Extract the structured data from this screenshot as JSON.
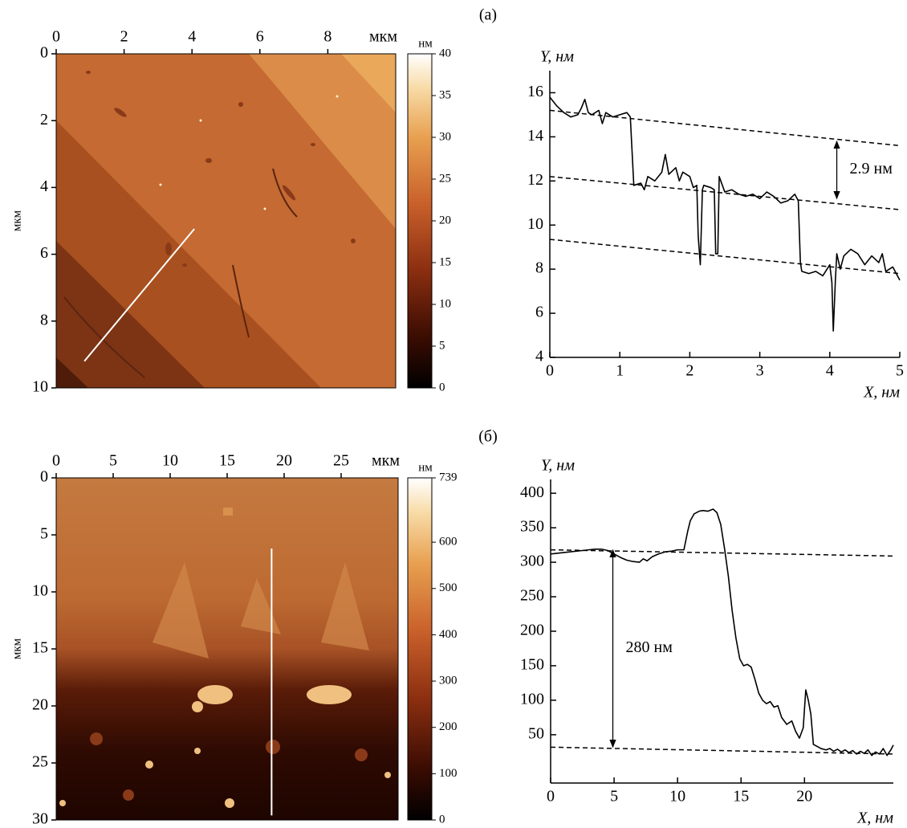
{
  "panel_labels": [
    "(а)",
    "(б)"
  ],
  "chart_data": [
    {
      "type": "image",
      "x_unit": "мкм",
      "ylabel": "мкм",
      "xlim": [
        0,
        10
      ],
      "xticks": [
        0,
        2,
        4,
        6,
        8
      ],
      "ylim": [
        0,
        10
      ],
      "yticks": [
        0,
        2,
        4,
        6,
        8,
        10
      ],
      "y_inverted": true,
      "colorbar": {
        "label": "нм",
        "lim": [
          0,
          40
        ],
        "ticks": [
          0,
          5,
          10,
          15,
          20,
          25,
          30,
          35,
          40
        ]
      },
      "scan_line": {
        "x": [
          0.83,
          4.07
        ],
        "y": [
          9.2,
          5.24
        ],
        "color": "#ffffff"
      }
    },
    {
      "type": "line",
      "xlabel": "X, нм",
      "ylabel": "Y, нм",
      "xlim": [
        0,
        5
      ],
      "xticks": [
        0,
        1,
        2,
        3,
        4,
        5
      ],
      "ylim": [
        4,
        17
      ],
      "yticks": [
        4,
        6,
        8,
        10,
        12,
        14,
        16
      ],
      "x": [
        0,
        0.05,
        0.1,
        0.2,
        0.3,
        0.4,
        0.45,
        0.5,
        0.55,
        0.6,
        0.7,
        0.75,
        0.8,
        0.9,
        1.0,
        1.1,
        1.15,
        1.2,
        1.3,
        1.35,
        1.4,
        1.5,
        1.6,
        1.65,
        1.7,
        1.8,
        1.85,
        1.9,
        2.0,
        2.05,
        2.1,
        2.12,
        2.15,
        2.18,
        2.2,
        2.3,
        2.35,
        2.37,
        2.4,
        2.42,
        2.5,
        2.6,
        2.7,
        2.8,
        2.9,
        3.0,
        3.1,
        3.2,
        3.3,
        3.4,
        3.5,
        3.55,
        3.58,
        3.6,
        3.7,
        3.8,
        3.9,
        4.0,
        4.03,
        4.05,
        4.08,
        4.1,
        4.15,
        4.2,
        4.3,
        4.4,
        4.5,
        4.6,
        4.7,
        4.75,
        4.8,
        4.9,
        4.95,
        5.0
      ],
      "series": [
        {
          "color": "#000000",
          "values": [
            15.8,
            15.6,
            15.4,
            15.1,
            14.9,
            15.0,
            15.3,
            15.7,
            15.1,
            15.0,
            15.2,
            14.6,
            15.1,
            14.9,
            15.0,
            15.1,
            14.9,
            11.8,
            11.9,
            11.6,
            12.2,
            12.0,
            12.4,
            13.2,
            12.3,
            12.6,
            12.0,
            12.4,
            12.2,
            11.7,
            11.8,
            9.5,
            8.2,
            11.6,
            11.8,
            11.7,
            11.6,
            8.7,
            8.7,
            12.2,
            11.5,
            11.6,
            11.4,
            11.3,
            11.4,
            11.2,
            11.5,
            11.3,
            11.0,
            11.1,
            11.4,
            11.1,
            8.3,
            7.9,
            7.8,
            7.9,
            7.7,
            8.2,
            7.4,
            5.2,
            7.5,
            8.7,
            8.0,
            8.6,
            8.9,
            8.7,
            8.2,
            8.6,
            8.3,
            8.7,
            7.9,
            8.1,
            7.8,
            7.5
          ]
        }
      ],
      "reference_lines": [
        {
          "x": [
            0,
            5
          ],
          "y": [
            15.2,
            13.6
          ]
        },
        {
          "x": [
            0,
            5
          ],
          "y": [
            12.2,
            10.7
          ]
        },
        {
          "x": [
            0,
            5
          ],
          "y": [
            9.35,
            7.8
          ]
        }
      ],
      "annotation": {
        "text": "2.9 нм",
        "x": 4.1,
        "y": [
          13.8,
          11.2
        ]
      }
    },
    {
      "type": "image",
      "x_unit": "мкм",
      "ylabel": "мкм",
      "xlim": [
        0,
        30
      ],
      "xticks": [
        0,
        5,
        10,
        15,
        20,
        25
      ],
      "ylim": [
        0,
        30
      ],
      "yticks": [
        0,
        5,
        10,
        15,
        20,
        25,
        30
      ],
      "y_inverted": true,
      "colorbar": {
        "label": "нм",
        "lim": [
          0,
          739
        ],
        "ticks": [
          0,
          100,
          200,
          300,
          400,
          500,
          600,
          739
        ]
      },
      "scan_line": {
        "x": [
          18.9,
          18.9
        ],
        "y": [
          6.2,
          29.6
        ],
        "color": "#ffffff"
      }
    },
    {
      "type": "line",
      "xlabel": "X, нм",
      "ylabel": "Y, нм",
      "xlim": [
        0,
        27
      ],
      "xticks": [
        0,
        5,
        10,
        15,
        20
      ],
      "ylim": [
        -20,
        420
      ],
      "yticks": [
        50,
        100,
        150,
        200,
        250,
        300,
        350,
        400
      ],
      "x": [
        0,
        0.5,
        1,
        1.5,
        2,
        2.5,
        3,
        3.5,
        4,
        4.5,
        5,
        5.5,
        6,
        6.5,
        7,
        7.3,
        7.6,
        8,
        8.5,
        9,
        9.5,
        10,
        10.5,
        10.8,
        11,
        11.3,
        11.7,
        12,
        12.4,
        12.8,
        13.1,
        13.4,
        13.7,
        14,
        14.3,
        14.6,
        14.9,
        15.2,
        15.5,
        15.8,
        16.1,
        16.4,
        16.7,
        17,
        17.3,
        17.6,
        17.9,
        18.2,
        18.6,
        19,
        19.3,
        19.6,
        19.9,
        20.1,
        20.3,
        20.5,
        20.7,
        21,
        21.3,
        21.7,
        22,
        22.3,
        22.6,
        22.9,
        23.2,
        23.5,
        23.8,
        24.1,
        24.4,
        24.7,
        25,
        25.3,
        25.6,
        25.9,
        26.2,
        26.5,
        26.8,
        27
      ],
      "series": [
        {
          "color": "#000000",
          "values": [
            312,
            313,
            314,
            315,
            316,
            317,
            318,
            319,
            319,
            317,
            312,
            307,
            303,
            301,
            300,
            305,
            302,
            308,
            312,
            315,
            316,
            318,
            318,
            345,
            360,
            370,
            374,
            375,
            374,
            377,
            372,
            355,
            320,
            280,
            230,
            190,
            160,
            150,
            152,
            148,
            130,
            110,
            100,
            95,
            98,
            90,
            92,
            75,
            65,
            70,
            55,
            45,
            60,
            115,
            100,
            80,
            36,
            33,
            30,
            28,
            30,
            26,
            29,
            25,
            28,
            24,
            27,
            22,
            26,
            23,
            28,
            20,
            25,
            22,
            30,
            20,
            28,
            35
          ]
        }
      ],
      "reference_lines": [
        {
          "x": [
            0,
            27
          ],
          "y": [
            318,
            309
          ]
        },
        {
          "x": [
            0,
            27
          ],
          "y": [
            32,
            22
          ]
        }
      ],
      "annotation": {
        "text": "280 нм",
        "x": 4.9,
        "y": [
          318,
          32
        ]
      }
    }
  ]
}
